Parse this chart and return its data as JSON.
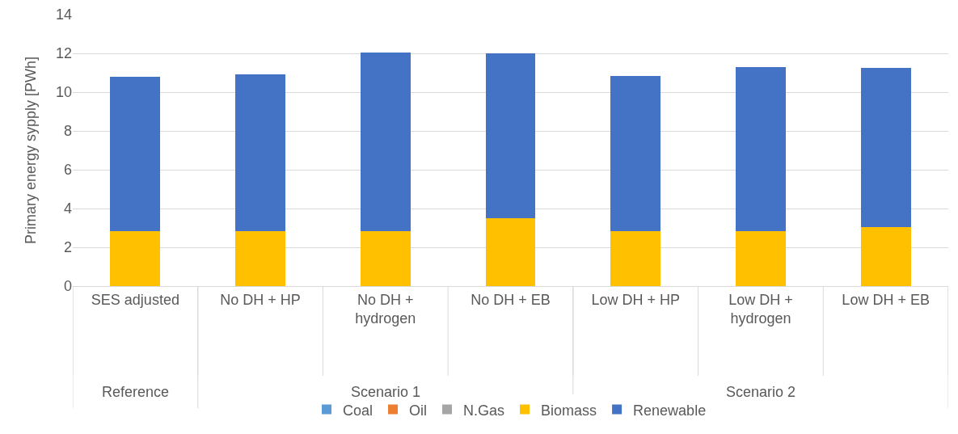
{
  "chart_data": {
    "type": "bar",
    "stacked": true,
    "ylabel": "Primary energy sypply [PWh]",
    "categories": [
      "SES adjusted",
      "No DH + HP",
      "No DH + hydrogen",
      "No DH + EB",
      "Low DH + HP",
      "Low DH + hydrogen",
      "Low DH + EB"
    ],
    "series": [
      {
        "name": "Coal",
        "color": "#5b9bd5",
        "values": [
          0,
          0,
          0,
          0,
          0,
          0,
          0
        ]
      },
      {
        "name": "Oil",
        "color": "#ed7d31",
        "values": [
          0,
          0,
          0,
          0,
          0,
          0,
          0
        ]
      },
      {
        "name": "N.Gas",
        "color": "#a5a5a5",
        "values": [
          0,
          0,
          0,
          0,
          0,
          0,
          0
        ]
      },
      {
        "name": "Biomass",
        "color": "#ffc000",
        "values": [
          2.85,
          2.85,
          2.85,
          3.5,
          2.85,
          2.85,
          3.05
        ]
      },
      {
        "name": "Renewable",
        "color": "#4472c4",
        "values": [
          7.95,
          8.08,
          9.2,
          8.52,
          7.98,
          8.45,
          8.2
        ]
      }
    ],
    "annotations": [
      "Reference",
      "Scenario 1",
      "Scenario 2"
    ],
    "ylim": [
      0,
      14
    ],
    "yticks": [
      0,
      2,
      4,
      6,
      8,
      10,
      12,
      14
    ],
    "grid": "y",
    "legend": "bottom"
  }
}
